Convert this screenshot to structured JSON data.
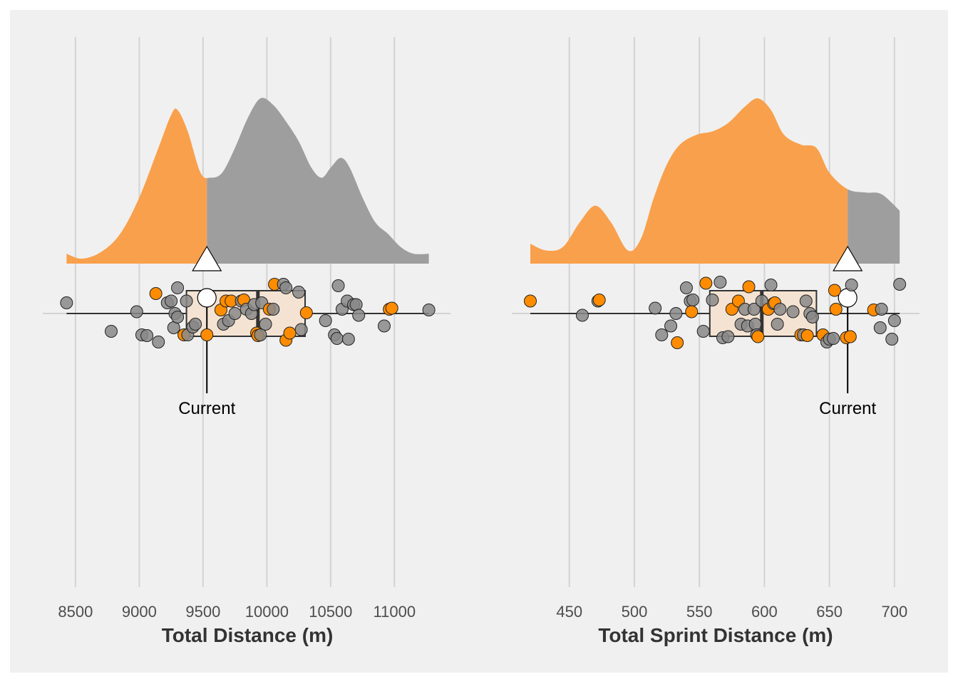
{
  "colors": {
    "highlight": "#ff8c00",
    "base": "#888888",
    "density_low": "#f9a04c",
    "density_high": "#9e9e9e",
    "box_fill": "#f4e3d2",
    "panel_bg": "#f0f0f0",
    "grid": "#d3d3d3"
  },
  "chart_data": [
    {
      "type": "raincloud",
      "xlabel": "Total Distance (m)",
      "xlim": [
        8400,
        11300
      ],
      "ticks": [
        8500,
        9000,
        9500,
        10000,
        10500,
        11000
      ],
      "current": {
        "label": "Current",
        "value": 9530
      },
      "box": {
        "whisker_low": 8430,
        "q1": 9370,
        "median": 9930,
        "q3": 10300,
        "whisker_high": 11270
      },
      "density": [
        [
          8430,
          0.06
        ],
        [
          8550,
          0.03
        ],
        [
          8700,
          0.07
        ],
        [
          8850,
          0.18
        ],
        [
          9000,
          0.4
        ],
        [
          9150,
          0.7
        ],
        [
          9250,
          0.9
        ],
        [
          9300,
          0.93
        ],
        [
          9380,
          0.8
        ],
        [
          9480,
          0.55
        ],
        [
          9560,
          0.52
        ],
        [
          9650,
          0.55
        ],
        [
          9750,
          0.7
        ],
        [
          9850,
          0.88
        ],
        [
          9950,
          1.0
        ],
        [
          10050,
          0.96
        ],
        [
          10150,
          0.86
        ],
        [
          10250,
          0.74
        ],
        [
          10350,
          0.58
        ],
        [
          10430,
          0.52
        ],
        [
          10500,
          0.58
        ],
        [
          10580,
          0.64
        ],
        [
          10650,
          0.58
        ],
        [
          10750,
          0.4
        ],
        [
          10850,
          0.25
        ],
        [
          10950,
          0.18
        ],
        [
          11050,
          0.1
        ],
        [
          11150,
          0.06
        ],
        [
          11270,
          0.06
        ]
      ],
      "points": [
        {
          "x": 8430,
          "y": 0.3,
          "hi": false
        },
        {
          "x": 8780,
          "y": -0.5,
          "hi": false
        },
        {
          "x": 8980,
          "y": 0.05,
          "hi": false
        },
        {
          "x": 9020,
          "y": -0.6,
          "hi": false
        },
        {
          "x": 9060,
          "y": -0.62,
          "hi": false
        },
        {
          "x": 9130,
          "y": 0.56,
          "hi": true
        },
        {
          "x": 9150,
          "y": -0.8,
          "hi": false
        },
        {
          "x": 9220,
          "y": 0.3,
          "hi": false
        },
        {
          "x": 9250,
          "y": 0.35,
          "hi": false
        },
        {
          "x": 9280,
          "y": 0.0,
          "hi": false
        },
        {
          "x": 9270,
          "y": -0.4,
          "hi": false
        },
        {
          "x": 9300,
          "y": -0.1,
          "hi": false
        },
        {
          "x": 9300,
          "y": 0.72,
          "hi": false
        },
        {
          "x": 9350,
          "y": -0.6,
          "hi": true
        },
        {
          "x": 9380,
          "y": -0.6,
          "hi": false
        },
        {
          "x": 9370,
          "y": 0.35,
          "hi": false
        },
        {
          "x": 9420,
          "y": -0.38,
          "hi": false
        },
        {
          "x": 9440,
          "y": -0.3,
          "hi": false
        },
        {
          "x": 9530,
          "y": -0.6,
          "hi": true
        },
        {
          "x": 9640,
          "y": 0.1,
          "hi": true
        },
        {
          "x": 9660,
          "y": -0.3,
          "hi": false
        },
        {
          "x": 9680,
          "y": 0.35,
          "hi": true
        },
        {
          "x": 9700,
          "y": -0.2,
          "hi": false
        },
        {
          "x": 9720,
          "y": 0.35,
          "hi": true
        },
        {
          "x": 9750,
          "y": 0.0,
          "hi": false
        },
        {
          "x": 9800,
          "y": 0.35,
          "hi": false
        },
        {
          "x": 9820,
          "y": 0.38,
          "hi": true
        },
        {
          "x": 9840,
          "y": 0.12,
          "hi": false
        },
        {
          "x": 9880,
          "y": 0.0,
          "hi": false
        },
        {
          "x": 9900,
          "y": 0.25,
          "hi": false
        },
        {
          "x": 9920,
          "y": -0.55,
          "hi": true
        },
        {
          "x": 9930,
          "y": -0.62,
          "hi": true
        },
        {
          "x": 9950,
          "y": -0.6,
          "hi": false
        },
        {
          "x": 9960,
          "y": 0.3,
          "hi": false
        },
        {
          "x": 9990,
          "y": -0.3,
          "hi": false
        },
        {
          "x": 10020,
          "y": 0.12,
          "hi": true
        },
        {
          "x": 10050,
          "y": 0.12,
          "hi": false
        },
        {
          "x": 10060,
          "y": 0.82,
          "hi": true
        },
        {
          "x": 10130,
          "y": 0.82,
          "hi": false
        },
        {
          "x": 10150,
          "y": 0.72,
          "hi": false
        },
        {
          "x": 10150,
          "y": -0.75,
          "hi": true
        },
        {
          "x": 10180,
          "y": -0.55,
          "hi": true
        },
        {
          "x": 10250,
          "y": 0.6,
          "hi": false
        },
        {
          "x": 10270,
          "y": -0.45,
          "hi": false
        },
        {
          "x": 10310,
          "y": 0.02,
          "hi": true
        },
        {
          "x": 10460,
          "y": -0.2,
          "hi": false
        },
        {
          "x": 10530,
          "y": -0.6,
          "hi": false
        },
        {
          "x": 10550,
          "y": -0.7,
          "hi": false
        },
        {
          "x": 10560,
          "y": 0.78,
          "hi": false
        },
        {
          "x": 10590,
          "y": 0.12,
          "hi": false
        },
        {
          "x": 10630,
          "y": 0.35,
          "hi": false
        },
        {
          "x": 10640,
          "y": -0.72,
          "hi": false
        },
        {
          "x": 10680,
          "y": 0.25,
          "hi": false
        },
        {
          "x": 10700,
          "y": 0.25,
          "hi": false
        },
        {
          "x": 10720,
          "y": -0.05,
          "hi": false
        },
        {
          "x": 10920,
          "y": -0.35,
          "hi": false
        },
        {
          "x": 10960,
          "y": 0.12,
          "hi": true
        },
        {
          "x": 10980,
          "y": 0.15,
          "hi": true
        },
        {
          "x": 11270,
          "y": 0.1,
          "hi": false
        }
      ]
    },
    {
      "type": "raincloud",
      "xlabel": "Total Sprint Distance (m)",
      "xlim": [
        420,
        705
      ],
      "ticks": [
        450,
        500,
        550,
        600,
        650,
        700
      ],
      "current": {
        "label": "Current",
        "value": 664
      },
      "box": {
        "whisker_low": 420,
        "q1": 558,
        "median": 598,
        "q3": 640,
        "whisker_high": 704
      },
      "density": [
        [
          420,
          0.12
        ],
        [
          432,
          0.08
        ],
        [
          445,
          0.1
        ],
        [
          458,
          0.25
        ],
        [
          470,
          0.35
        ],
        [
          482,
          0.25
        ],
        [
          495,
          0.08
        ],
        [
          505,
          0.15
        ],
        [
          515,
          0.4
        ],
        [
          525,
          0.6
        ],
        [
          535,
          0.72
        ],
        [
          548,
          0.78
        ],
        [
          560,
          0.8
        ],
        [
          572,
          0.85
        ],
        [
          585,
          0.95
        ],
        [
          595,
          1.0
        ],
        [
          605,
          0.93
        ],
        [
          615,
          0.78
        ],
        [
          628,
          0.72
        ],
        [
          640,
          0.7
        ],
        [
          650,
          0.55
        ],
        [
          664,
          0.45
        ],
        [
          678,
          0.43
        ],
        [
          690,
          0.42
        ],
        [
          704,
          0.32
        ]
      ],
      "points": [
        {
          "x": 420,
          "y": 0.35,
          "hi": true
        },
        {
          "x": 460,
          "y": -0.05,
          "hi": false
        },
        {
          "x": 472,
          "y": 0.35,
          "hi": false
        },
        {
          "x": 473,
          "y": 0.38,
          "hi": true
        },
        {
          "x": 516,
          "y": 0.15,
          "hi": false
        },
        {
          "x": 521,
          "y": -0.6,
          "hi": false
        },
        {
          "x": 528,
          "y": -0.35,
          "hi": false
        },
        {
          "x": 532,
          "y": 0.0,
          "hi": false
        },
        {
          "x": 533,
          "y": -0.82,
          "hi": true
        },
        {
          "x": 540,
          "y": 0.72,
          "hi": false
        },
        {
          "x": 543,
          "y": 0.35,
          "hi": false
        },
        {
          "x": 544,
          "y": 0.05,
          "hi": true
        },
        {
          "x": 545,
          "y": 0.38,
          "hi": false
        },
        {
          "x": 553,
          "y": -0.5,
          "hi": false
        },
        {
          "x": 555,
          "y": 0.85,
          "hi": true
        },
        {
          "x": 560,
          "y": 0.38,
          "hi": false
        },
        {
          "x": 566,
          "y": 0.88,
          "hi": false
        },
        {
          "x": 568,
          "y": -0.68,
          "hi": false
        },
        {
          "x": 572,
          "y": -0.65,
          "hi": false
        },
        {
          "x": 575,
          "y": 0.12,
          "hi": true
        },
        {
          "x": 580,
          "y": 0.35,
          "hi": true
        },
        {
          "x": 582,
          "y": -0.3,
          "hi": false
        },
        {
          "x": 585,
          "y": 0.12,
          "hi": false
        },
        {
          "x": 587,
          "y": -0.35,
          "hi": false
        },
        {
          "x": 588,
          "y": 0.75,
          "hi": true
        },
        {
          "x": 592,
          "y": 0.12,
          "hi": false
        },
        {
          "x": 593,
          "y": -0.3,
          "hi": false
        },
        {
          "x": 594,
          "y": -0.6,
          "hi": false
        },
        {
          "x": 595,
          "y": -0.65,
          "hi": true
        },
        {
          "x": 598,
          "y": 0.35,
          "hi": false
        },
        {
          "x": 603,
          "y": 0.12,
          "hi": true
        },
        {
          "x": 605,
          "y": 0.8,
          "hi": false
        },
        {
          "x": 607,
          "y": 0.28,
          "hi": false
        },
        {
          "x": 608,
          "y": 0.3,
          "hi": true
        },
        {
          "x": 610,
          "y": -0.3,
          "hi": false
        },
        {
          "x": 612,
          "y": 0.12,
          "hi": false
        },
        {
          "x": 622,
          "y": 0.05,
          "hi": false
        },
        {
          "x": 628,
          "y": -0.6,
          "hi": true
        },
        {
          "x": 630,
          "y": -0.6,
          "hi": false
        },
        {
          "x": 632,
          "y": 0.35,
          "hi": false
        },
        {
          "x": 633,
          "y": -0.62,
          "hi": true
        },
        {
          "x": 635,
          "y": 0.0,
          "hi": false
        },
        {
          "x": 637,
          "y": -0.1,
          "hi": false
        },
        {
          "x": 645,
          "y": -0.6,
          "hi": true
        },
        {
          "x": 648,
          "y": -0.8,
          "hi": false
        },
        {
          "x": 650,
          "y": -0.72,
          "hi": false
        },
        {
          "x": 653,
          "y": -0.7,
          "hi": false
        },
        {
          "x": 654,
          "y": 0.65,
          "hi": true
        },
        {
          "x": 655,
          "y": 0.12,
          "hi": true
        },
        {
          "x": 663,
          "y": -0.68,
          "hi": true
        },
        {
          "x": 666,
          "y": -0.65,
          "hi": true
        },
        {
          "x": 667,
          "y": 0.8,
          "hi": false
        },
        {
          "x": 684,
          "y": 0.1,
          "hi": true
        },
        {
          "x": 689,
          "y": -0.4,
          "hi": false
        },
        {
          "x": 690,
          "y": 0.12,
          "hi": false
        },
        {
          "x": 698,
          "y": -0.72,
          "hi": false
        },
        {
          "x": 700,
          "y": -0.2,
          "hi": false
        },
        {
          "x": 704,
          "y": 0.82,
          "hi": false
        }
      ]
    }
  ]
}
